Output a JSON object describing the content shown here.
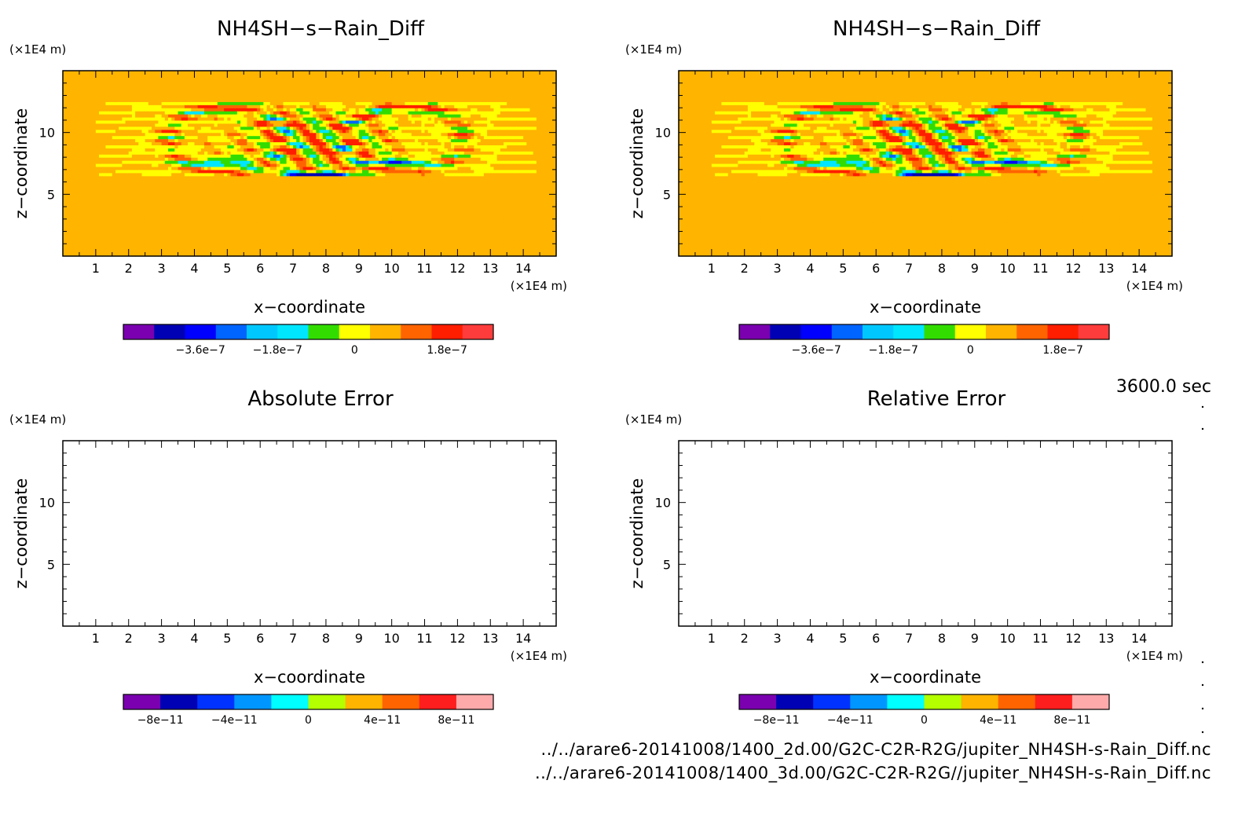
{
  "time_label": "3600.0 sec",
  "footer": {
    "line1": "../../arare6-20141008/1400_2d.00/G2C-C2R-R2G/jupiter_NH4SH-s-Rain_Diff.nc",
    "line2": "../../arare6-20141008/1400_3d.00/G2C-C2R-R2G//jupiter_NH4SH-s-Rain_Diff.nc"
  },
  "chart_data": [
    {
      "type": "heatmap",
      "title": "NH4SH−s−Rain_Diff",
      "xlabel": "x−coordinate",
      "ylabel": "z−coordinate",
      "x_unit": "(×1E4 m)",
      "y_unit": "(×1E4 m)",
      "xlim": [
        0,
        15
      ],
      "ylim": [
        0,
        15
      ],
      "x_ticks": [
        "1",
        "2",
        "3",
        "4",
        "5",
        "6",
        "7",
        "8",
        "9",
        "10",
        "11",
        "12",
        "13",
        "14"
      ],
      "y_ticks": [
        "5",
        "10"
      ],
      "field": "convective-difference-pattern",
      "colorbar": {
        "colors": [
          "#7a00b0",
          "#0000b4",
          "#0000ff",
          "#0064ff",
          "#00c8ff",
          "#00e6ff",
          "#32dc00",
          "#ffff00",
          "#ffb400",
          "#ff6400",
          "#ff1e00",
          "#ff3c3c"
        ],
        "tick_labels": [
          "−3.6e−7",
          "−1.8e−7",
          "0",
          "1.8e−7"
        ]
      }
    },
    {
      "type": "heatmap",
      "title": "NH4SH−s−Rain_Diff",
      "xlabel": "x−coordinate",
      "ylabel": "z−coordinate",
      "x_unit": "(×1E4 m)",
      "y_unit": "(×1E4 m)",
      "xlim": [
        0,
        15
      ],
      "ylim": [
        0,
        15
      ],
      "x_ticks": [
        "1",
        "2",
        "3",
        "4",
        "5",
        "6",
        "7",
        "8",
        "9",
        "10",
        "11",
        "12",
        "13",
        "14"
      ],
      "y_ticks": [
        "5",
        "10"
      ],
      "field": "convective-difference-pattern",
      "colorbar": {
        "colors": [
          "#7a00b0",
          "#0000b4",
          "#0000ff",
          "#0064ff",
          "#00c8ff",
          "#00e6ff",
          "#32dc00",
          "#ffff00",
          "#ffb400",
          "#ff6400",
          "#ff1e00",
          "#ff3c3c"
        ],
        "tick_labels": [
          "−3.6e−7",
          "−1.8e−7",
          "0",
          "1.8e−7"
        ]
      }
    },
    {
      "type": "heatmap",
      "title": "Absolute Error",
      "xlabel": "x−coordinate",
      "ylabel": "z−coordinate",
      "x_unit": "(×1E4 m)",
      "y_unit": "(×1E4 m)",
      "xlim": [
        0,
        15
      ],
      "ylim": [
        0,
        15
      ],
      "x_ticks": [
        "1",
        "2",
        "3",
        "4",
        "5",
        "6",
        "7",
        "8",
        "9",
        "10",
        "11",
        "12",
        "13",
        "14"
      ],
      "y_ticks": [
        "5",
        "10"
      ],
      "field": "empty",
      "colorbar": {
        "colors": [
          "#7a00b0",
          "#0000b4",
          "#0032ff",
          "#0096ff",
          "#00ffff",
          "#b4ff00",
          "#ffb400",
          "#ff6400",
          "#ff1e1e",
          "#ffaaaa"
        ],
        "tick_labels": [
          "−8e−11",
          "−4e−11",
          "0",
          "4e−11",
          "8e−11"
        ]
      }
    },
    {
      "type": "heatmap",
      "title": "Relative Error",
      "xlabel": "x−coordinate",
      "ylabel": "z−coordinate",
      "x_unit": "(×1E4 m)",
      "y_unit": "(×1E4 m)",
      "xlim": [
        0,
        15
      ],
      "ylim": [
        0,
        15
      ],
      "x_ticks": [
        "1",
        "2",
        "3",
        "4",
        "5",
        "6",
        "7",
        "8",
        "9",
        "10",
        "11",
        "12",
        "13",
        "14"
      ],
      "y_ticks": [
        "5",
        "10"
      ],
      "field": "empty",
      "colorbar": {
        "colors": [
          "#7a00b0",
          "#0000b4",
          "#0032ff",
          "#0096ff",
          "#00ffff",
          "#b4ff00",
          "#ffb400",
          "#ff6400",
          "#ff1e1e",
          "#ffaaaa"
        ],
        "tick_labels": [
          "−8e−11",
          "−4e−11",
          "0",
          "4e−11",
          "8e−11"
        ]
      }
    }
  ]
}
